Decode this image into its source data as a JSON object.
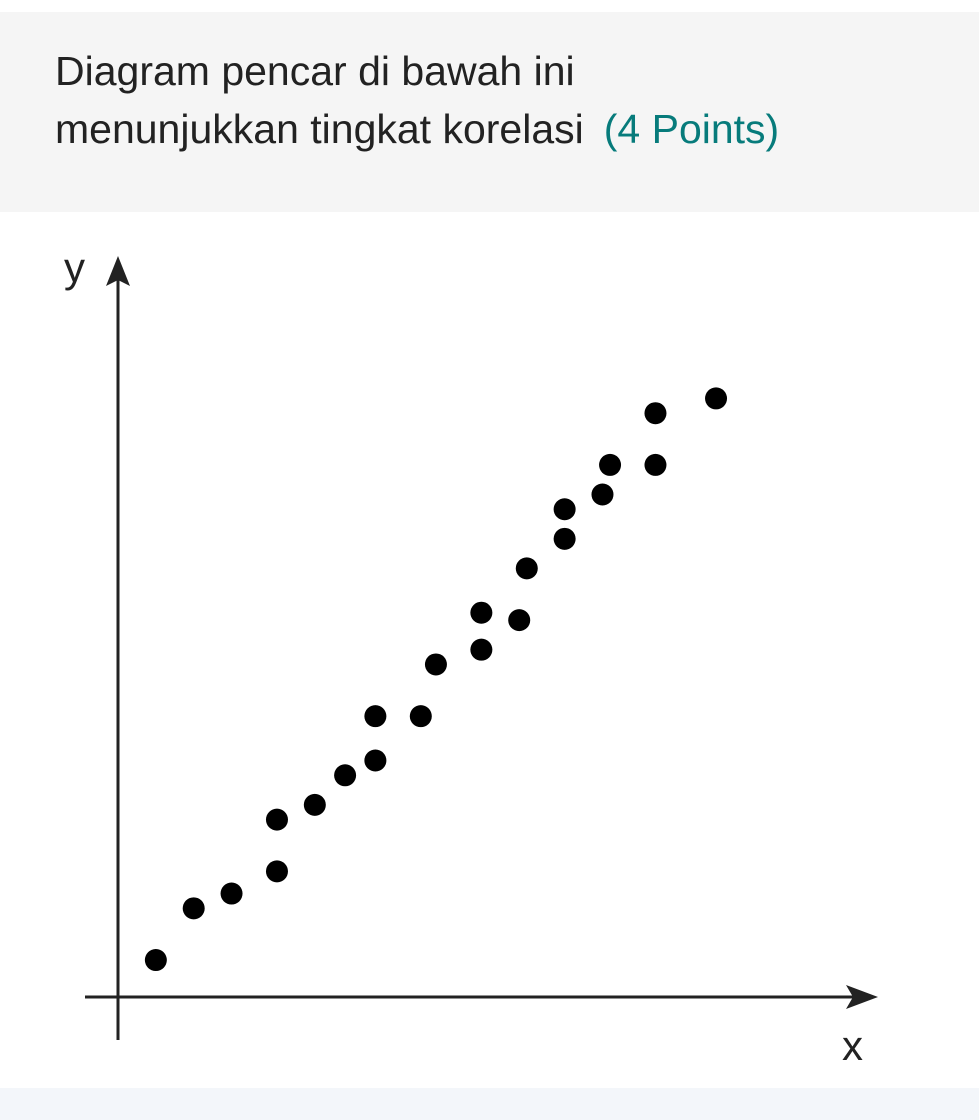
{
  "question": {
    "text_line1": "Diagram pencar di bawah ini",
    "text_line2": "menunjukkan tingkat korelasi",
    "points_label": "(4 Points)",
    "accent_color": "#077b7b"
  },
  "chart_data": {
    "type": "scatter",
    "title": "",
    "xlabel": "x",
    "ylabel": "y",
    "xlim": [
      0,
      100
    ],
    "ylim": [
      0,
      100
    ],
    "grid": false,
    "ticks": false,
    "points": [
      [
        5,
        5
      ],
      [
        10,
        12
      ],
      [
        15,
        14
      ],
      [
        21,
        17
      ],
      [
        21,
        24
      ],
      [
        26,
        26
      ],
      [
        30,
        30
      ],
      [
        34,
        32
      ],
      [
        34,
        38
      ],
      [
        40,
        38
      ],
      [
        42,
        45
      ],
      [
        48,
        47
      ],
      [
        48,
        52
      ],
      [
        53,
        51
      ],
      [
        54,
        58
      ],
      [
        59,
        62
      ],
      [
        59,
        66
      ],
      [
        64,
        68
      ],
      [
        65,
        72
      ],
      [
        71,
        72
      ],
      [
        71,
        79
      ],
      [
        79,
        81
      ]
    ],
    "point_color": "#000000"
  }
}
